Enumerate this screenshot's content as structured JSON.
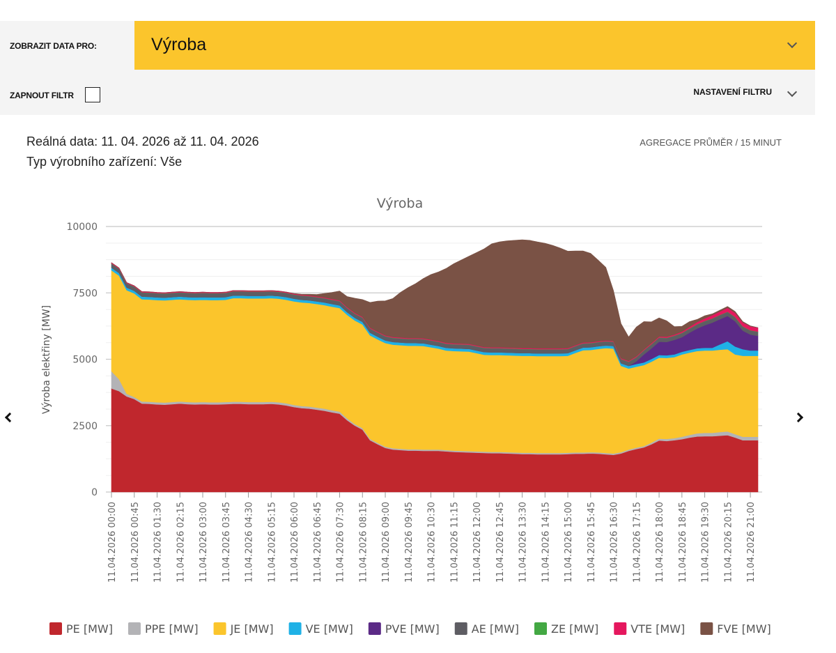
{
  "filters": {
    "show_data_label": "ZOBRAZIT DATA PRO:",
    "show_data_value": "Výroba",
    "enable_filter_label": "ZAPNOUT FILTR",
    "filter_settings_label": "NASTAVENÍ FILTRU"
  },
  "info": {
    "real_data": "Reálná data: 11. 04. 2026 až 11. 04. 2026",
    "plant_type": "Typ výrobního zařízení: Vše",
    "aggregation": "AGREGACE PRŮMĚR / 15 MINUT"
  },
  "nav": {
    "prev_icon": "chevron-left-icon",
    "next_icon": "chevron-right-icon"
  },
  "chart_data": {
    "type": "area",
    "stacked": true,
    "title": "Výroba",
    "ylabel": "Výroba elektřiny [MW]",
    "xlabel": "",
    "ylim": [
      0,
      10000
    ],
    "yticks": [
      0,
      2500,
      5000,
      7500,
      10000
    ],
    "grid": true,
    "legend_position": "bottom",
    "x": [
      "11.04.2026 00:00",
      "11.04.2026 00:15",
      "11.04.2026 00:30",
      "11.04.2026 00:45",
      "11.04.2026 01:00",
      "11.04.2026 01:15",
      "11.04.2026 01:30",
      "11.04.2026 01:45",
      "11.04.2026 02:00",
      "11.04.2026 02:15",
      "11.04.2026 02:30",
      "11.04.2026 02:45",
      "11.04.2026 03:00",
      "11.04.2026 03:15",
      "11.04.2026 03:30",
      "11.04.2026 03:45",
      "11.04.2026 04:00",
      "11.04.2026 04:15",
      "11.04.2026 04:30",
      "11.04.2026 04:45",
      "11.04.2026 05:00",
      "11.04.2026 05:15",
      "11.04.2026 05:30",
      "11.04.2026 05:45",
      "11.04.2026 06:00",
      "11.04.2026 06:15",
      "11.04.2026 06:30",
      "11.04.2026 06:45",
      "11.04.2026 07:00",
      "11.04.2026 07:15",
      "11.04.2026 07:30",
      "11.04.2026 07:45",
      "11.04.2026 08:00",
      "11.04.2026 08:15",
      "11.04.2026 08:30",
      "11.04.2026 08:45",
      "11.04.2026 09:00",
      "11.04.2026 09:15",
      "11.04.2026 09:30",
      "11.04.2026 09:45",
      "11.04.2026 10:00",
      "11.04.2026 10:15",
      "11.04.2026 10:30",
      "11.04.2026 10:45",
      "11.04.2026 11:00",
      "11.04.2026 11:15",
      "11.04.2026 11:30",
      "11.04.2026 11:45",
      "11.04.2026 12:00",
      "11.04.2026 12:15",
      "11.04.2026 12:30",
      "11.04.2026 12:45",
      "11.04.2026 13:00",
      "11.04.2026 13:15",
      "11.04.2026 13:30",
      "11.04.2026 13:45",
      "11.04.2026 14:00",
      "11.04.2026 14:15",
      "11.04.2026 14:30",
      "11.04.2026 14:45",
      "11.04.2026 15:00",
      "11.04.2026 15:15",
      "11.04.2026 15:30",
      "11.04.2026 15:45",
      "11.04.2026 16:00",
      "11.04.2026 16:15",
      "11.04.2026 16:30",
      "11.04.2026 16:45",
      "11.04.2026 17:00",
      "11.04.2026 17:15",
      "11.04.2026 17:30",
      "11.04.2026 17:45",
      "11.04.2026 18:00",
      "11.04.2026 18:15",
      "11.04.2026 18:30",
      "11.04.2026 18:45",
      "11.04.2026 19:00",
      "11.04.2026 19:15",
      "11.04.2026 19:30",
      "11.04.2026 19:45",
      "11.04.2026 20:00",
      "11.04.2026 20:15",
      "11.04.2026 20:30",
      "11.04.2026 20:45",
      "11.04.2026 21:00",
      "11.04.2026 21:15"
    ],
    "tick_every": 3,
    "series": [
      {
        "name": "PE [MW]",
        "color": "#c0272d",
        "values": [
          3900,
          3800,
          3600,
          3500,
          3330,
          3320,
          3300,
          3290,
          3310,
          3330,
          3310,
          3300,
          3310,
          3300,
          3300,
          3310,
          3320,
          3320,
          3310,
          3310,
          3310,
          3320,
          3300,
          3260,
          3200,
          3160,
          3140,
          3100,
          3060,
          3000,
          2950,
          2700,
          2500,
          2350,
          1950,
          1800,
          1660,
          1600,
          1580,
          1560,
          1560,
          1550,
          1550,
          1550,
          1530,
          1510,
          1500,
          1490,
          1480,
          1470,
          1460,
          1460,
          1450,
          1440,
          1430,
          1430,
          1420,
          1420,
          1420,
          1420,
          1430,
          1440,
          1440,
          1450,
          1440,
          1420,
          1400,
          1450,
          1550,
          1620,
          1680,
          1800,
          1940,
          1920,
          1950,
          1990,
          2050,
          2090,
          2100,
          2100,
          2120,
          2140,
          2050,
          1950,
          1950,
          1950
        ]
      },
      {
        "name": "PPE [MW]",
        "color": "#b3b3b6",
        "values": [
          650,
          450,
          100,
          80,
          80,
          80,
          80,
          80,
          80,
          80,
          80,
          80,
          80,
          80,
          80,
          80,
          80,
          80,
          80,
          80,
          80,
          80,
          80,
          80,
          80,
          80,
          80,
          80,
          80,
          80,
          80,
          70,
          60,
          60,
          50,
          50,
          50,
          50,
          50,
          50,
          50,
          50,
          50,
          50,
          50,
          50,
          50,
          50,
          50,
          50,
          50,
          50,
          50,
          50,
          50,
          50,
          50,
          50,
          50,
          50,
          50,
          50,
          50,
          50,
          50,
          50,
          50,
          50,
          50,
          50,
          50,
          60,
          70,
          80,
          80,
          90,
          100,
          120,
          130,
          130,
          140,
          140,
          130,
          130,
          130,
          130
        ]
      },
      {
        "name": "JE [MW]",
        "color": "#fbc52c",
        "values": [
          3800,
          3900,
          3900,
          3900,
          3850,
          3850,
          3850,
          3850,
          3850,
          3850,
          3850,
          3850,
          3850,
          3850,
          3850,
          3850,
          3900,
          3900,
          3900,
          3900,
          3900,
          3900,
          3900,
          3900,
          3900,
          3900,
          3900,
          3900,
          3900,
          3900,
          3900,
          3900,
          3900,
          3900,
          3900,
          3900,
          3900,
          3900,
          3900,
          3900,
          3900,
          3900,
          3850,
          3800,
          3750,
          3750,
          3750,
          3750,
          3700,
          3650,
          3650,
          3650,
          3650,
          3650,
          3650,
          3650,
          3650,
          3650,
          3650,
          3650,
          3650,
          3750,
          3850,
          3850,
          3900,
          3950,
          3950,
          3250,
          3050,
          3050,
          3050,
          3050,
          3050,
          3050,
          3050,
          3100,
          3100,
          3100,
          3100,
          3100,
          3100,
          3100,
          3000,
          3050,
          3050,
          3050
        ]
      },
      {
        "name": "VE [MW]",
        "color": "#1fb1e6",
        "values": [
          100,
          100,
          100,
          100,
          100,
          100,
          100,
          100,
          100,
          100,
          100,
          100,
          100,
          100,
          100,
          100,
          100,
          100,
          100,
          100,
          100,
          100,
          100,
          100,
          100,
          100,
          100,
          100,
          100,
          100,
          100,
          100,
          100,
          100,
          100,
          100,
          100,
          100,
          100,
          100,
          100,
          100,
          100,
          100,
          100,
          100,
          100,
          100,
          100,
          100,
          100,
          100,
          100,
          100,
          100,
          100,
          100,
          100,
          100,
          100,
          100,
          100,
          100,
          100,
          100,
          100,
          100,
          100,
          100,
          100,
          100,
          100,
          100,
          100,
          100,
          100,
          100,
          100,
          100,
          100,
          200,
          300,
          300,
          250,
          200,
          200
        ]
      },
      {
        "name": "PVE [MW]",
        "color": "#5b2a86",
        "values": [
          0,
          0,
          0,
          0,
          0,
          0,
          0,
          0,
          0,
          0,
          0,
          0,
          0,
          0,
          0,
          0,
          0,
          0,
          0,
          0,
          0,
          0,
          0,
          0,
          0,
          0,
          0,
          0,
          0,
          0,
          0,
          0,
          0,
          0,
          0,
          0,
          0,
          0,
          0,
          0,
          0,
          0,
          0,
          0,
          0,
          0,
          0,
          0,
          0,
          0,
          0,
          0,
          0,
          0,
          0,
          0,
          0,
          0,
          0,
          0,
          0,
          0,
          0,
          0,
          0,
          0,
          0,
          0,
          0,
          100,
          300,
          400,
          500,
          500,
          550,
          550,
          650,
          750,
          850,
          950,
          950,
          950,
          950,
          700,
          600,
          550
        ]
      },
      {
        "name": "AE [MW]",
        "color": "#5e5d63",
        "values": [
          150,
          150,
          150,
          150,
          150,
          150,
          150,
          150,
          150,
          150,
          150,
          150,
          150,
          150,
          150,
          150,
          150,
          150,
          150,
          150,
          150,
          150,
          150,
          150,
          150,
          150,
          150,
          150,
          150,
          150,
          150,
          150,
          150,
          150,
          150,
          150,
          150,
          150,
          150,
          150,
          150,
          150,
          150,
          150,
          150,
          150,
          150,
          150,
          150,
          150,
          150,
          150,
          150,
          150,
          150,
          150,
          150,
          150,
          150,
          150,
          150,
          150,
          150,
          150,
          150,
          150,
          150,
          150,
          150,
          150,
          150,
          150,
          150,
          150,
          150,
          150,
          150,
          150,
          150,
          150,
          150,
          150,
          150,
          150,
          150,
          150
        ]
      },
      {
        "name": "ZE [MW]",
        "color": "#43a843",
        "values": [
          10,
          10,
          10,
          10,
          10,
          10,
          10,
          10,
          10,
          10,
          10,
          10,
          10,
          10,
          10,
          10,
          10,
          10,
          10,
          10,
          10,
          10,
          10,
          10,
          10,
          10,
          10,
          10,
          10,
          10,
          10,
          10,
          10,
          10,
          10,
          10,
          10,
          10,
          10,
          10,
          10,
          10,
          10,
          10,
          10,
          10,
          10,
          10,
          10,
          10,
          10,
          10,
          10,
          10,
          10,
          10,
          10,
          10,
          10,
          10,
          10,
          10,
          10,
          10,
          10,
          10,
          10,
          10,
          10,
          10,
          10,
          10,
          10,
          10,
          10,
          10,
          10,
          10,
          10,
          10,
          10,
          10,
          10,
          10,
          10,
          10
        ]
      },
      {
        "name": "VTE [MW]",
        "color": "#e5175e",
        "values": [
          30,
          30,
          30,
          30,
          30,
          30,
          30,
          30,
          30,
          30,
          30,
          30,
          30,
          30,
          30,
          30,
          30,
          30,
          30,
          30,
          30,
          30,
          30,
          30,
          30,
          30,
          30,
          30,
          30,
          30,
          30,
          30,
          30,
          30,
          30,
          30,
          30,
          30,
          30,
          30,
          30,
          30,
          30,
          30,
          30,
          30,
          30,
          30,
          30,
          30,
          30,
          30,
          30,
          30,
          30,
          30,
          30,
          30,
          30,
          30,
          30,
          30,
          30,
          30,
          30,
          30,
          30,
          30,
          30,
          30,
          30,
          40,
          40,
          40,
          40,
          50,
          60,
          80,
          100,
          120,
          130,
          150,
          160,
          150,
          150,
          150
        ]
      },
      {
        "name": "FVE [MW]",
        "color": "#7a5245",
        "values": [
          0,
          0,
          0,
          0,
          0,
          0,
          0,
          0,
          0,
          0,
          0,
          0,
          0,
          0,
          0,
          0,
          0,
          0,
          0,
          0,
          0,
          0,
          0,
          0,
          10,
          20,
          40,
          70,
          150,
          250,
          350,
          400,
          550,
          650,
          950,
          1150,
          1300,
          1450,
          1700,
          1900,
          2050,
          2250,
          2450,
          2600,
          2800,
          3000,
          3150,
          3300,
          3500,
          3700,
          3900,
          3970,
          4020,
          4050,
          4080,
          4060,
          4010,
          3960,
          3880,
          3780,
          3650,
          3550,
          3450,
          3350,
          3050,
          2750,
          1900,
          1300,
          900,
          1100,
          1050,
          800,
          700,
          600,
          300,
          200,
          200,
          100,
          100,
          50,
          50,
          50,
          50,
          30,
          20,
          0
        ]
      }
    ]
  }
}
